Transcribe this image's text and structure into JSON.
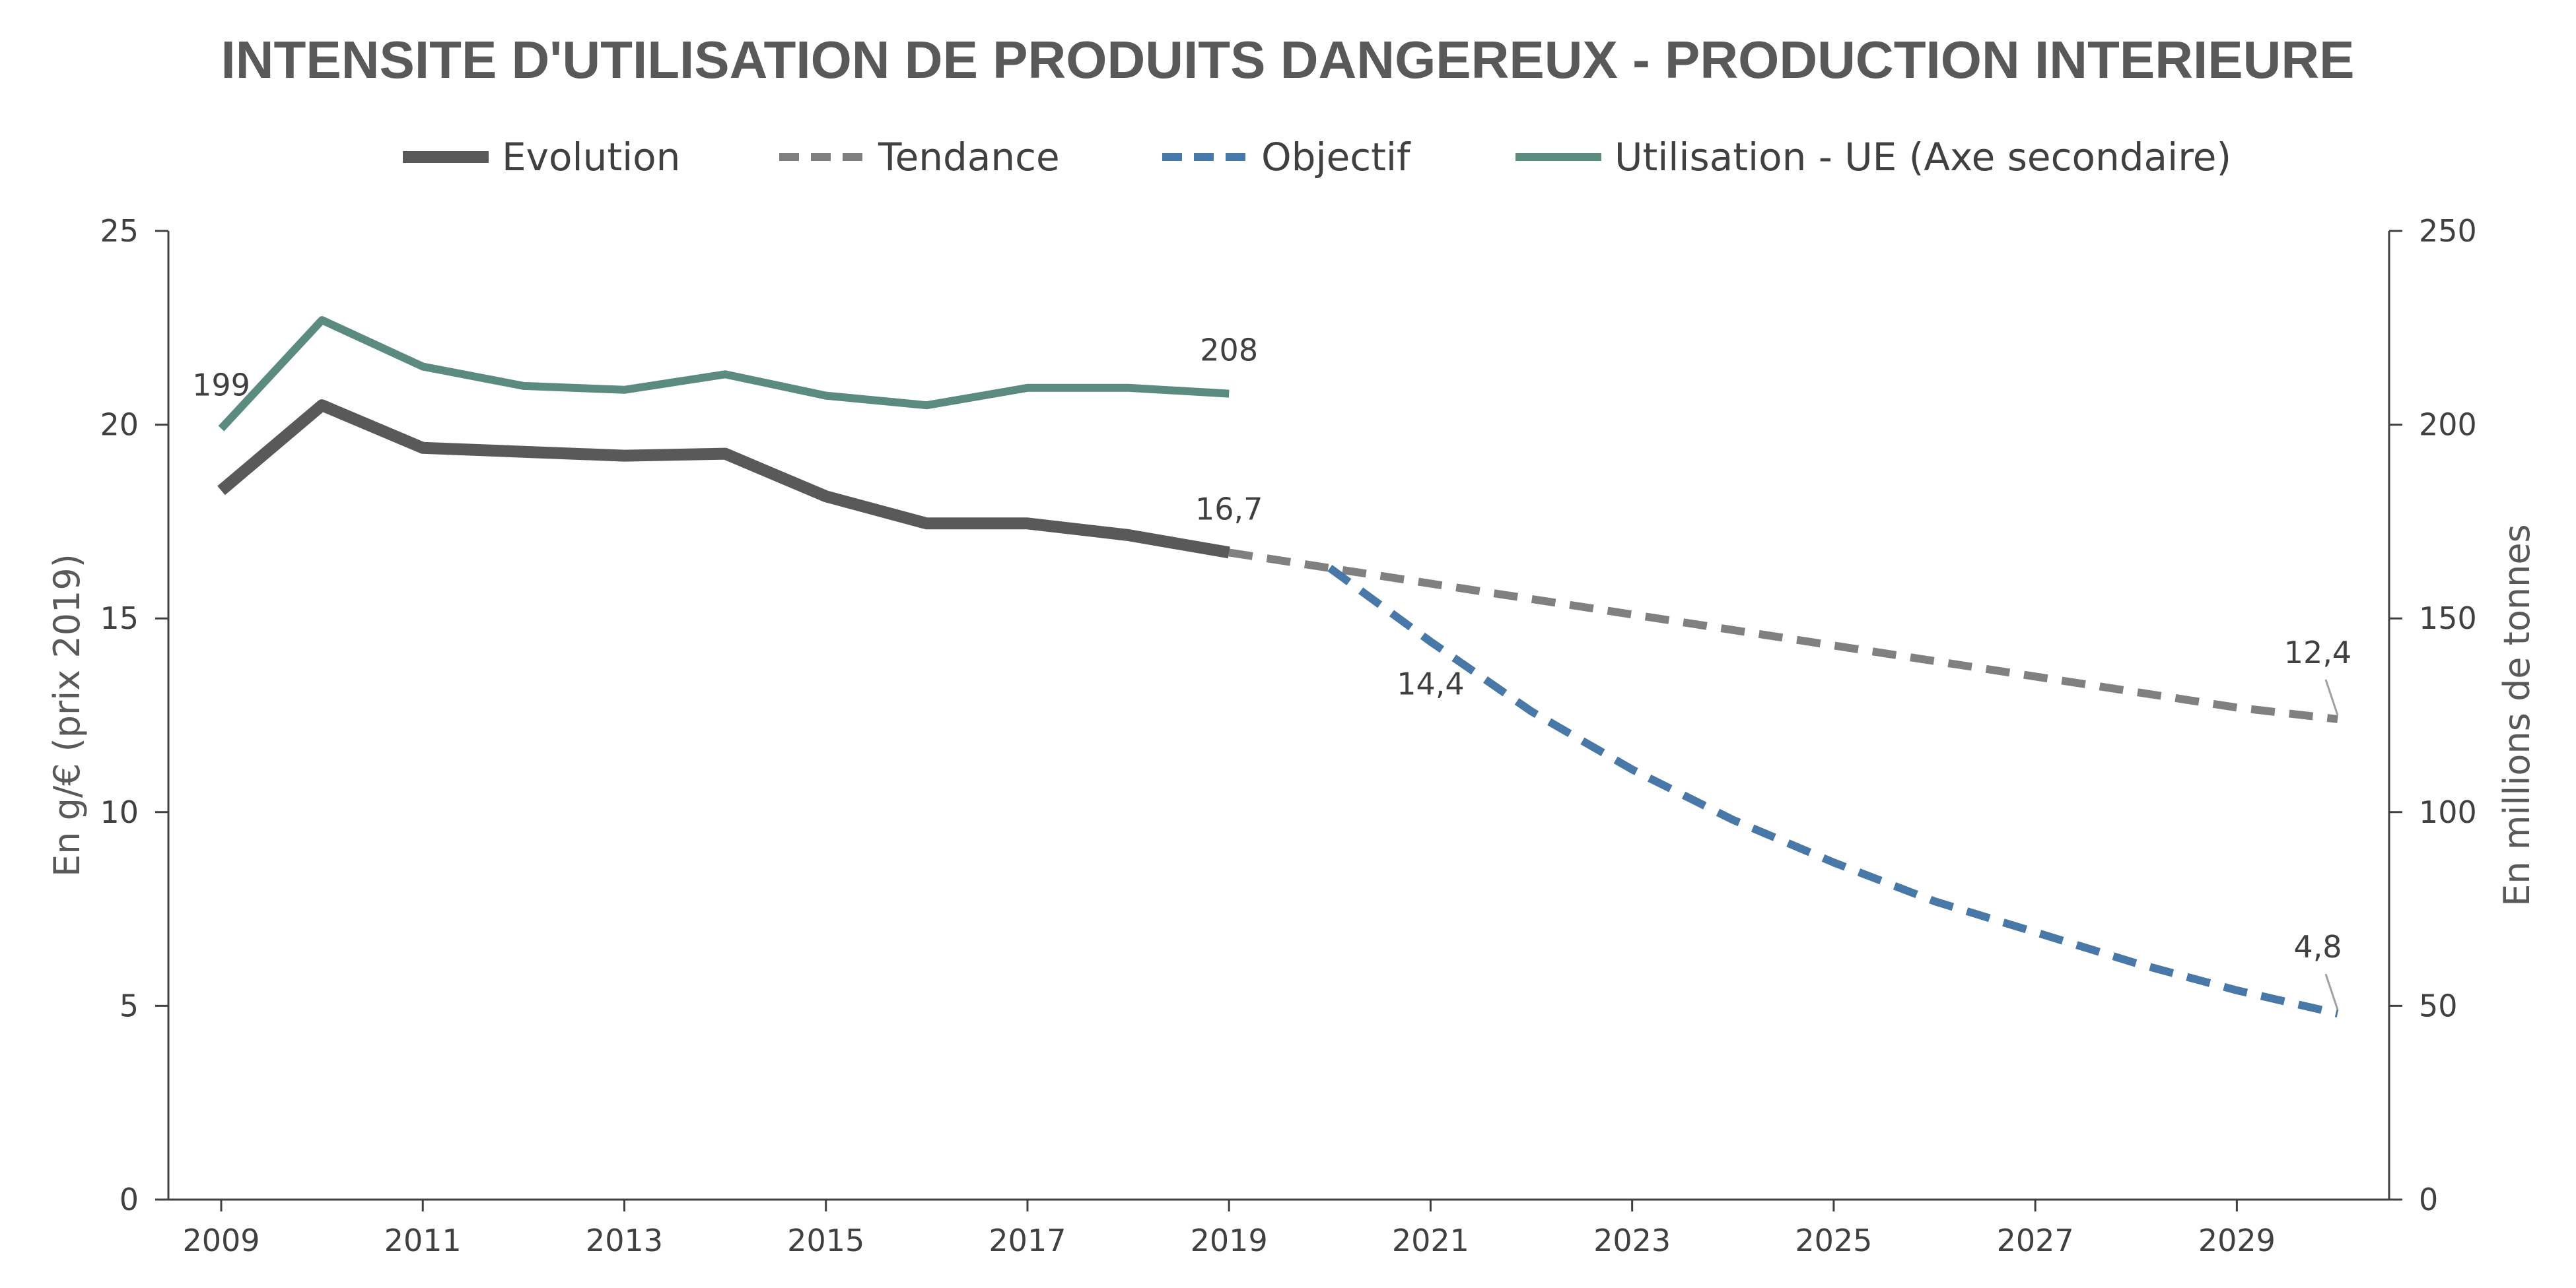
{
  "chart_data": {
    "type": "line",
    "title": "INTENSITE D'UTILISATION DE PRODUITS DANGEREUX - PRODUCTION INTERIEURE",
    "x_tick_labels": [
      "2009",
      "2011",
      "2013",
      "2015",
      "2017",
      "2019",
      "2021",
      "2023",
      "2025",
      "2027",
      "2029"
    ],
    "x_range": [
      2009,
      2030
    ],
    "y_left": {
      "label": "En g/€ (prix 2019)",
      "range": [
        0,
        25
      ],
      "ticks": [
        "0",
        "5",
        "10",
        "15",
        "20",
        "25"
      ]
    },
    "y_right": {
      "label": "En millions de tonnes",
      "range": [
        0,
        250
      ],
      "ticks": [
        "0",
        "50",
        "100",
        "150",
        "200",
        "250"
      ]
    },
    "grid": false,
    "legend_position": "top",
    "series": [
      {
        "name": "Evolution",
        "axis": "left",
        "style": "solid",
        "color": "#595959",
        "x": [
          2009,
          2010,
          2011,
          2012,
          2013,
          2014,
          2015,
          2016,
          2017,
          2018,
          2019
        ],
        "y": [
          18.3,
          20.5,
          19.4,
          19.3,
          19.2,
          19.25,
          18.15,
          17.45,
          17.45,
          17.15,
          16.7
        ]
      },
      {
        "name": "Tendance",
        "axis": "left",
        "style": "dashed",
        "color": "#808080",
        "x": [
          2019,
          2020,
          2021,
          2022,
          2023,
          2024,
          2025,
          2026,
          2027,
          2028,
          2029,
          2030
        ],
        "y": [
          16.7,
          16.3,
          15.9,
          15.5,
          15.1,
          14.7,
          14.3,
          13.9,
          13.5,
          13.1,
          12.7,
          12.4
        ]
      },
      {
        "name": "Objectif",
        "axis": "left",
        "style": "dashed",
        "color": "#4878a8",
        "x": [
          2020,
          2021,
          2022,
          2023,
          2024,
          2025,
          2026,
          2027,
          2028,
          2029,
          2030
        ],
        "y": [
          16.3,
          14.4,
          12.6,
          11.1,
          9.8,
          8.7,
          7.7,
          6.9,
          6.1,
          5.4,
          4.8
        ]
      },
      {
        "name": "Utilisation - UE (Axe secondaire)",
        "axis": "right",
        "style": "solid",
        "color": "#5b8a7e",
        "x": [
          2009,
          2010,
          2011,
          2012,
          2013,
          2014,
          2015,
          2016,
          2017,
          2018,
          2019
        ],
        "y": [
          199,
          227,
          215,
          210,
          209,
          213,
          207.5,
          205,
          209.5,
          209.5,
          208
        ]
      }
    ],
    "annotations": [
      {
        "text": "199",
        "x": 2009,
        "axis": "right",
        "y": 199
      },
      {
        "text": "208",
        "x": 2019,
        "axis": "right",
        "y": 208
      },
      {
        "text": "16,7",
        "x": 2019,
        "axis": "left",
        "y": 16.7
      },
      {
        "text": "14,4",
        "x": 2021,
        "axis": "left",
        "y": 14.4
      },
      {
        "text": "12,4",
        "x": 2030,
        "axis": "left",
        "y": 12.4
      },
      {
        "text": "4,8",
        "x": 2030,
        "axis": "left",
        "y": 4.8
      }
    ]
  }
}
